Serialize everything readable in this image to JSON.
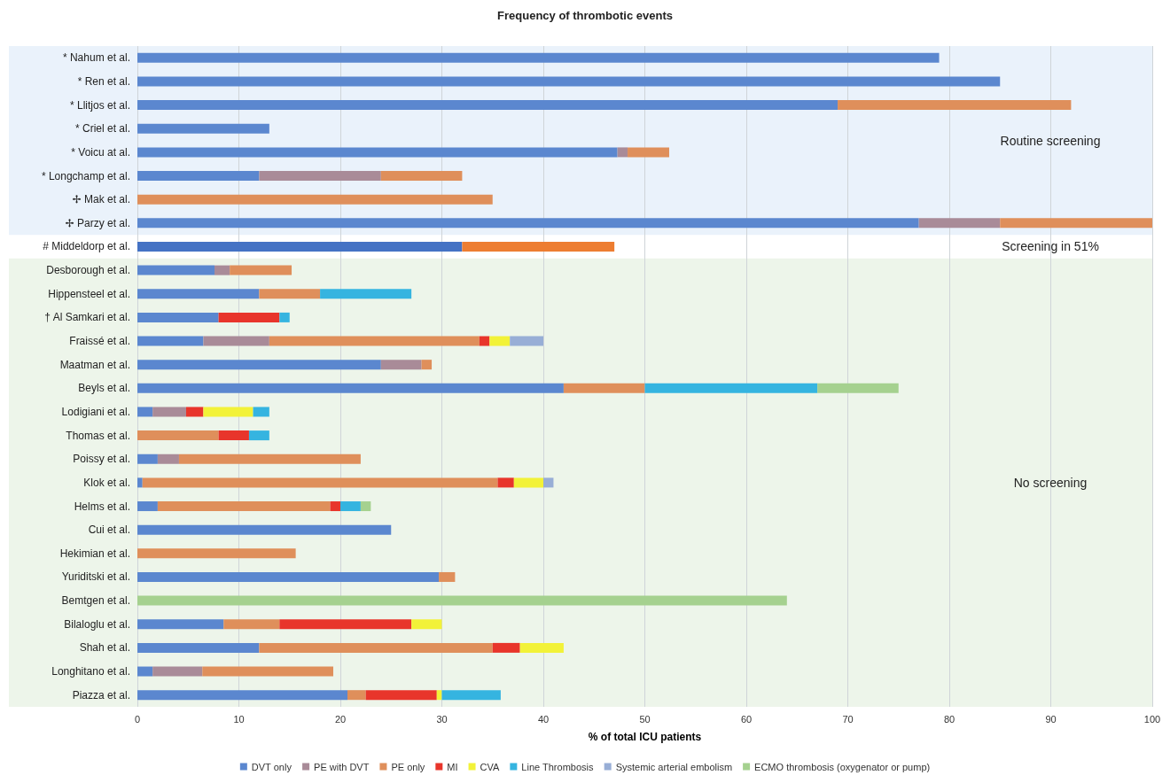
{
  "chart_data": {
    "type": "bar",
    "orientation": "horizontal",
    "stacked": true,
    "title": "Frequency of thrombotic events",
    "xlabel": "% of total ICU patients",
    "categories": [
      "* Nahum et al.",
      "* Ren et al.",
      "* Llitjos et al.",
      "* Criel et al.",
      "* Voicu at al.",
      "* Longchamp et al.",
      "✢ Mak et al.",
      "✢ Parzy et al.",
      "# Middeldorp et al.",
      "Desborough et al.",
      "Hippensteel et al.",
      "† Al Samkari et al.",
      "Fraissé et al.",
      "Maatman et al.",
      "Beyls et al.",
      "Lodigiani et al.",
      "Thomas et al.",
      "Poissy et al.",
      "Klok et al.",
      "Helms et al.",
      "Cui et al.",
      "Hekimian et al.",
      "Yuriditski et al.",
      "Bemtgen et al.",
      "Bilaloglu et al.",
      "Shah et al.",
      "Longhitano et al.",
      "Piazza et al."
    ],
    "series": [
      {
        "name": "DVT only",
        "color": "#5b87cf",
        "colors": [
          "#5b87cf",
          "#5b87cf",
          "#5b87cf",
          "#5b87cf",
          "#5b87cf",
          "#5b87cf",
          "#5b87cf",
          "#5b87cf",
          "#4472c4",
          "#5b87cf",
          "#5b87cf",
          "#5b87cf",
          "#5b87cf",
          "#5b87cf",
          "#5b87cf",
          "#5b87cf",
          "#5b87cf",
          "#5b87cf",
          "#5b87cf",
          "#5b87cf",
          "#5b87cf",
          "#5b87cf",
          "#5b87cf",
          "#5b87cf",
          "#5b87cf",
          "#5b87cf",
          "#5b87cf",
          "#5b87cf"
        ],
        "values": [
          79,
          85,
          69,
          13,
          47.3,
          12,
          null,
          77,
          32,
          7.6,
          12,
          8,
          6.5,
          24,
          42,
          1.5,
          null,
          2,
          0.5,
          2,
          25,
          null,
          29.7,
          null,
          8.5,
          12,
          1.5,
          20.7
        ]
      },
      {
        "name": "PE with DVT",
        "color": "#a98b98",
        "values": [
          null,
          null,
          null,
          null,
          1,
          12,
          null,
          8,
          null,
          1.5,
          null,
          null,
          6.5,
          4,
          null,
          3.3,
          null,
          2.1,
          null,
          null,
          null,
          null,
          null,
          null,
          null,
          null,
          4.9,
          null
        ]
      },
      {
        "name": "PE only",
        "color": "#df8f5b",
        "colors": [
          "#df8f5b",
          "#df8f5b",
          "#df8f5b",
          "#df8f5b",
          "#df8f5b",
          "#df8f5b",
          "#df8f5b",
          "#df8f5b",
          "#ed7d31",
          "#df8f5b",
          "#df8f5b",
          "#df8f5b",
          "#df8f5b",
          "#df8f5b",
          "#df8f5b",
          "#df8f5b",
          "#df8f5b",
          "#df8f5b",
          "#df8f5b",
          "#df8f5b",
          "#df8f5b",
          "#df8f5b",
          "#df8f5b",
          "#df8f5b",
          "#df8f5b",
          "#df8f5b",
          "#df8f5b",
          "#df8f5b"
        ],
        "values": [
          null,
          null,
          23,
          null,
          4.1,
          8,
          35,
          15,
          15,
          6.1,
          6,
          null,
          20.7,
          1,
          8,
          null,
          8,
          17.9,
          35,
          17,
          null,
          15.6,
          1.6,
          null,
          5.5,
          23,
          12.9,
          1.8
        ]
      },
      {
        "name": "MI",
        "color": "#e8352b",
        "values": [
          null,
          null,
          null,
          null,
          null,
          null,
          null,
          null,
          null,
          null,
          null,
          6,
          1,
          null,
          null,
          1.7,
          3,
          null,
          1.6,
          1,
          null,
          null,
          null,
          null,
          13,
          2.7,
          null,
          7
        ]
      },
      {
        "name": "CVA",
        "color": "#f2f238",
        "values": [
          null,
          null,
          null,
          null,
          null,
          null,
          null,
          null,
          null,
          null,
          null,
          null,
          2,
          null,
          null,
          4.9,
          null,
          null,
          2.9,
          null,
          null,
          null,
          null,
          null,
          3,
          4.3,
          null,
          0.5
        ]
      },
      {
        "name": "Line Thrombosis",
        "color": "#35b4e0",
        "values": [
          null,
          null,
          null,
          null,
          null,
          null,
          null,
          null,
          null,
          null,
          9,
          1,
          null,
          null,
          17,
          1.6,
          2,
          null,
          null,
          2,
          null,
          null,
          null,
          null,
          null,
          null,
          null,
          5.8
        ]
      },
      {
        "name": "Systemic arterial embolism",
        "color": "#98aed6",
        "values": [
          null,
          null,
          null,
          null,
          null,
          null,
          null,
          null,
          null,
          null,
          null,
          null,
          3.3,
          null,
          null,
          null,
          null,
          null,
          1,
          null,
          null,
          null,
          null,
          null,
          null,
          null,
          null,
          null
        ]
      },
      {
        "name": "ECMO thrombosis (oxygenator or pump)",
        "color": "#a5d18f",
        "values": [
          null,
          null,
          null,
          null,
          null,
          null,
          null,
          null,
          null,
          null,
          null,
          null,
          null,
          null,
          8,
          null,
          null,
          null,
          null,
          1,
          null,
          null,
          null,
          64,
          null,
          null,
          null,
          null
        ]
      }
    ],
    "xlim": [
      0,
      100
    ],
    "xticks": [
      0,
      10,
      20,
      30,
      40,
      50,
      60,
      70,
      80,
      90,
      100
    ],
    "grid": "x",
    "legend": "bottom",
    "annotations": [
      "Screening in 51%"
    ],
    "bands": [
      {
        "axis": "y",
        "from": "* Nahum et al.",
        "to": "✢ Parzy et al.",
        "label": "Routine screening",
        "color": "#eaf2fb"
      },
      {
        "axis": "y",
        "from": "Desborough et al.",
        "to": "Piazza et al.",
        "label": "No screening",
        "color": "#edf5ea"
      }
    ]
  }
}
